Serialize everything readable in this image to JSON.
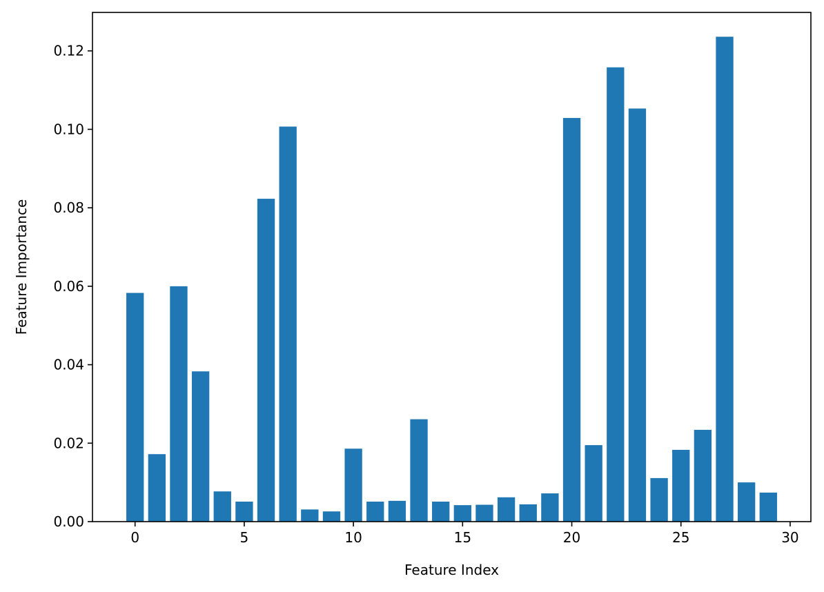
{
  "chart_data": {
    "type": "bar",
    "title": "",
    "xlabel": "Feature Index",
    "ylabel": "Feature Importance",
    "x": [
      0,
      1,
      2,
      3,
      4,
      5,
      6,
      7,
      8,
      9,
      10,
      11,
      12,
      13,
      14,
      15,
      16,
      17,
      18,
      19,
      20,
      21,
      22,
      23,
      24,
      25,
      26,
      27,
      28,
      29
    ],
    "values": [
      0.0583,
      0.0172,
      0.06,
      0.0383,
      0.0077,
      0.0051,
      0.0823,
      0.1007,
      0.0031,
      0.0026,
      0.0186,
      0.0051,
      0.0053,
      0.0261,
      0.0051,
      0.0042,
      0.0043,
      0.0062,
      0.0044,
      0.0072,
      0.1029,
      0.0195,
      0.1158,
      0.1053,
      0.0111,
      0.0183,
      0.0234,
      0.1236,
      0.01,
      0.0074
    ],
    "xlim": [
      -1.95,
      30.95
    ],
    "ylim": [
      0,
      0.1298
    ],
    "xticks": [
      0,
      5,
      10,
      15,
      20,
      25,
      30
    ],
    "yticks": [
      0.0,
      0.02,
      0.04,
      0.06,
      0.08,
      0.1,
      0.12
    ],
    "xtick_labels": [
      "0",
      "5",
      "10",
      "15",
      "20",
      "25",
      "30"
    ],
    "ytick_labels": [
      "0.00",
      "0.02",
      "0.04",
      "0.06",
      "0.08",
      "0.10",
      "0.12"
    ],
    "bar_color": "#1f77b4",
    "grid": false,
    "legend": "none"
  }
}
